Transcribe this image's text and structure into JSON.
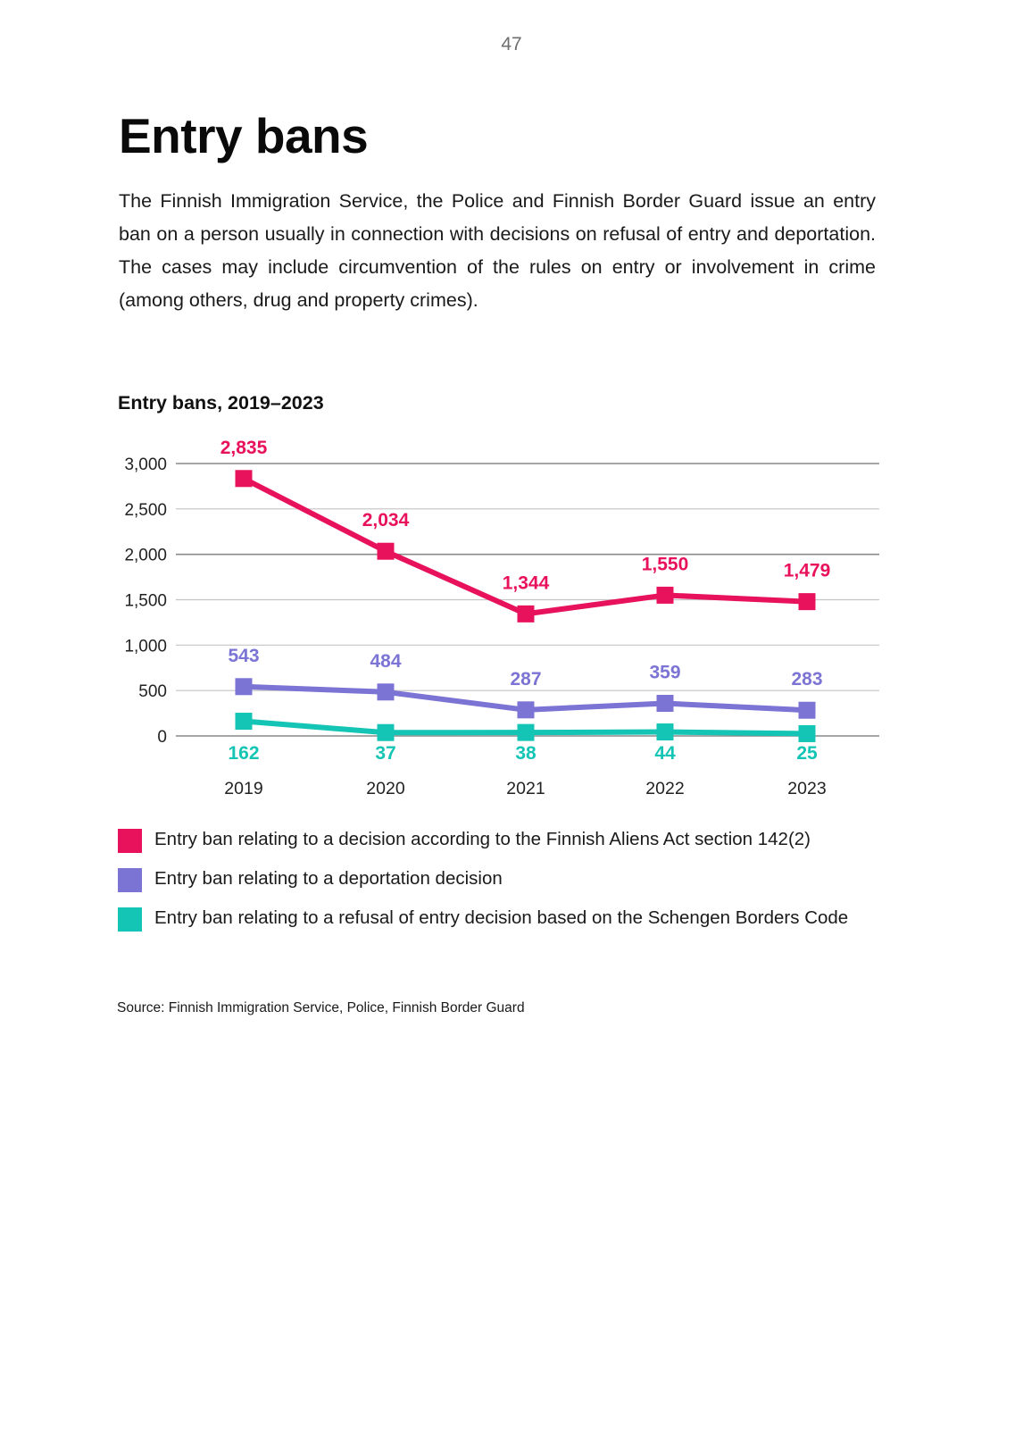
{
  "page": {
    "number": "47",
    "title": "Entry bans",
    "intro": "The Finnish Immigration Service, the Police and Finnish Border Guard issue an entry ban on a person usually in connection with decisions on refusal of entry and deportation. The cases may include circumvention of the rules on entry or involvement in crime (among others, drug and property crimes).",
    "source": "Source: Finnish Immigration Service, Police, Finnish Border Guard"
  },
  "chart_data": {
    "type": "line",
    "title": "Entry bans, 2019–2023",
    "xlabel": "",
    "ylabel": "",
    "categories": [
      "2019",
      "2020",
      "2021",
      "2022",
      "2023"
    ],
    "ylim": [
      0,
      3000
    ],
    "yticks": [
      0,
      500,
      1000,
      1500,
      2000,
      2500,
      3000
    ],
    "ytick_labels": [
      "0",
      "500",
      "1,000",
      "1,500",
      "2,000",
      "2,500",
      "3,000"
    ],
    "grid": true,
    "legend_position": "bottom",
    "series": [
      {
        "name": "Entry ban relating to a decision according to the Finnish Aliens Act section 142(2)",
        "color": "#e8115b",
        "values": [
          2835,
          2034,
          1344,
          1550,
          1479
        ],
        "labels": [
          "2,835",
          "2,034",
          "1,344",
          "1,550",
          "1,479"
        ],
        "label_position": "above"
      },
      {
        "name": "Entry ban relating to a deportation decision",
        "color": "#7b74d4",
        "values": [
          543,
          484,
          287,
          359,
          283
        ],
        "labels": [
          "543",
          "484",
          "287",
          "359",
          "283"
        ],
        "label_position": "above"
      },
      {
        "name": "Entry ban relating to a refusal of entry decision based on the Schengen Borders Code",
        "color": "#14c4b4",
        "values": [
          162,
          37,
          38,
          44,
          25
        ],
        "labels": [
          "162",
          "37",
          "38",
          "44",
          "25"
        ],
        "label_position": "below"
      }
    ]
  }
}
